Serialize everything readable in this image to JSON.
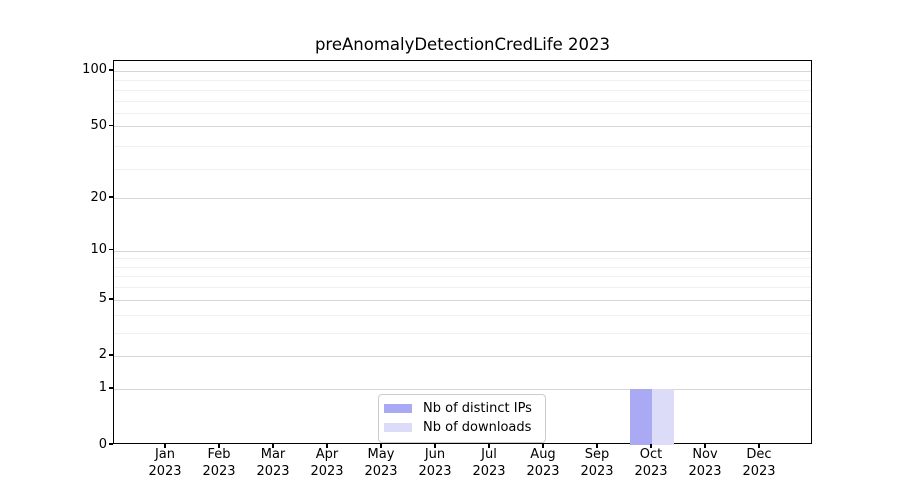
{
  "figure": {
    "background": "#ffffff"
  },
  "chart_data": {
    "type": "bar",
    "title": "preAnomalyDetectionCredLife 2023",
    "categories": [
      "Jan 2023",
      "Feb 2023",
      "Mar 2023",
      "Apr 2023",
      "May 2023",
      "Jun 2023",
      "Jul 2023",
      "Aug 2023",
      "Sep 2023",
      "Oct 2023",
      "Nov 2023",
      "Dec 2023"
    ],
    "series": [
      {
        "name": "Nb of distinct IPs",
        "color": "#a9a9f4",
        "values": [
          0,
          0,
          0,
          0,
          0,
          0,
          0,
          0,
          0,
          1,
          0,
          0
        ]
      },
      {
        "name": "Nb of downloads",
        "color": "#dcdcf9",
        "values": [
          0,
          0,
          0,
          0,
          0,
          0,
          0,
          0,
          0,
          1,
          0,
          0
        ]
      }
    ],
    "xlabel": "",
    "ylabel": "",
    "yscale": "log1p",
    "yticks": [
      0,
      1,
      2,
      5,
      10,
      20,
      50,
      100
    ],
    "ylim": [
      0,
      113
    ],
    "grid": true,
    "legend_position": "lower center",
    "legend_entries": [
      "Nb of distinct IPs",
      "Nb of downloads"
    ]
  },
  "colors": {
    "axis": "#000000",
    "grid_major": "#d6d6d6",
    "grid_minor": "#f0f0f0",
    "legend_border": "#cccccc",
    "text": "#000000"
  }
}
